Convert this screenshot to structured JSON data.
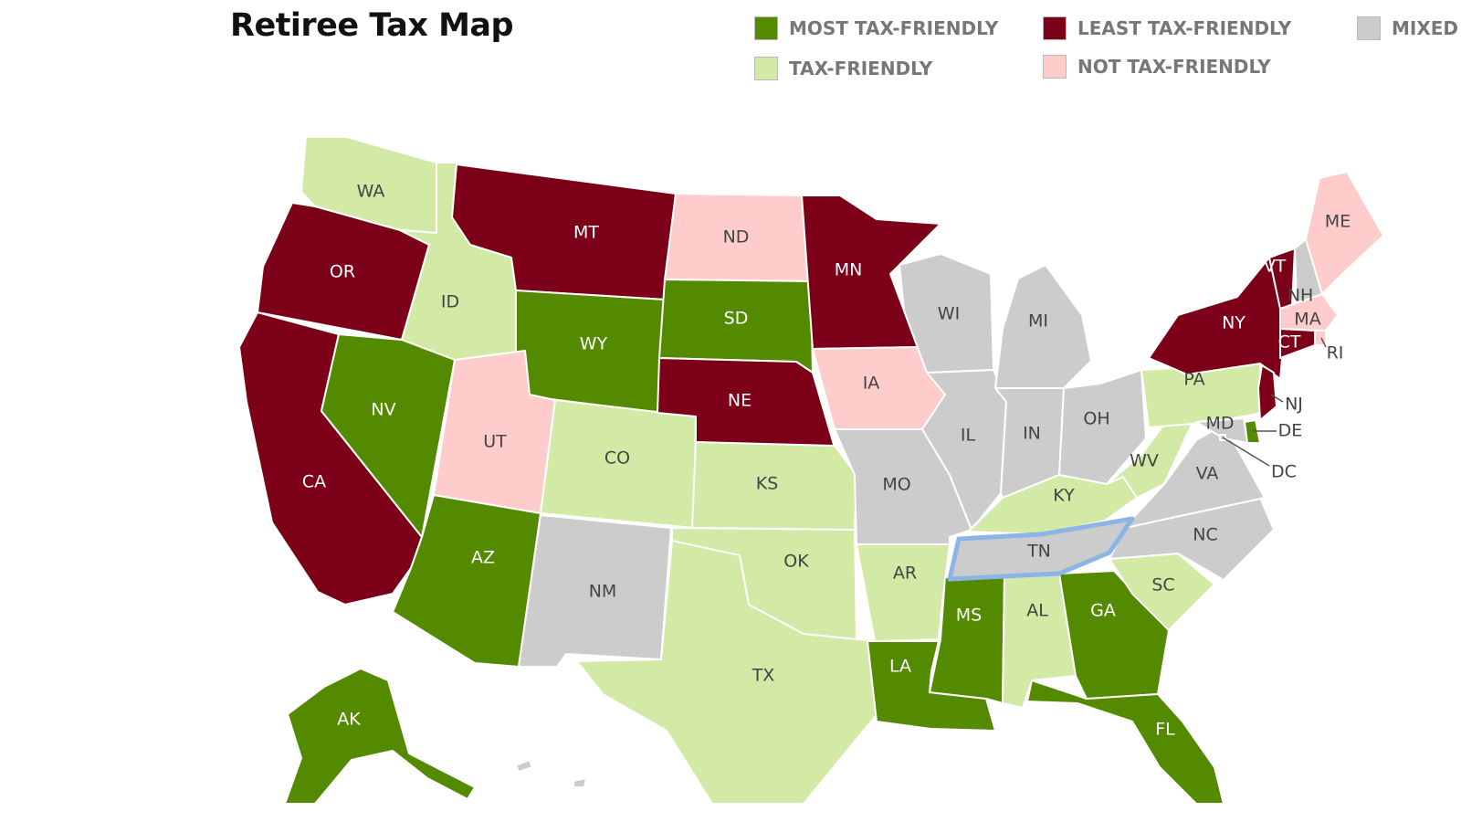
{
  "map": {
    "title": "Retiree Tax Map",
    "legend": [
      {
        "key": "most",
        "label": "MOST TAX-FRIENDLY",
        "color": "#548a00"
      },
      {
        "key": "least",
        "label": "LEAST TAX-FRIENDLY",
        "color": "#7c0018"
      },
      {
        "key": "mixed",
        "label": "MIXED",
        "color": "#cccccc"
      },
      {
        "key": "friendly",
        "label": "TAX-FRIENDLY",
        "color": "#d2eaa6"
      },
      {
        "key": "not",
        "label": "NOT TAX-FRIENDLY",
        "color": "#ffcccc"
      }
    ],
    "label_colors": {
      "on_dark": "#ffffff",
      "on_light": "#444444"
    },
    "selected_state": "TN",
    "states": [
      {
        "code": "WA",
        "category": "friendly"
      },
      {
        "code": "OR",
        "category": "least"
      },
      {
        "code": "CA",
        "category": "least"
      },
      {
        "code": "ID",
        "category": "friendly"
      },
      {
        "code": "NV",
        "category": "most"
      },
      {
        "code": "MT",
        "category": "least"
      },
      {
        "code": "WY",
        "category": "most"
      },
      {
        "code": "UT",
        "category": "not"
      },
      {
        "code": "AZ",
        "category": "most"
      },
      {
        "code": "CO",
        "category": "friendly"
      },
      {
        "code": "NM",
        "category": "mixed"
      },
      {
        "code": "ND",
        "category": "not"
      },
      {
        "code": "SD",
        "category": "most"
      },
      {
        "code": "NE",
        "category": "least"
      },
      {
        "code": "KS",
        "category": "friendly"
      },
      {
        "code": "OK",
        "category": "friendly"
      },
      {
        "code": "TX",
        "category": "friendly"
      },
      {
        "code": "MN",
        "category": "least"
      },
      {
        "code": "IA",
        "category": "not"
      },
      {
        "code": "MO",
        "category": "mixed"
      },
      {
        "code": "AR",
        "category": "friendly"
      },
      {
        "code": "LA",
        "category": "most"
      },
      {
        "code": "WI",
        "category": "mixed"
      },
      {
        "code": "IL",
        "category": "mixed"
      },
      {
        "code": "MI",
        "category": "mixed"
      },
      {
        "code": "IN",
        "category": "mixed"
      },
      {
        "code": "OH",
        "category": "mixed"
      },
      {
        "code": "KY",
        "category": "friendly"
      },
      {
        "code": "TN",
        "category": "mixed"
      },
      {
        "code": "MS",
        "category": "most"
      },
      {
        "code": "AL",
        "category": "friendly"
      },
      {
        "code": "GA",
        "category": "most"
      },
      {
        "code": "FL",
        "category": "most"
      },
      {
        "code": "SC",
        "category": "friendly"
      },
      {
        "code": "NC",
        "category": "mixed"
      },
      {
        "code": "VA",
        "category": "mixed"
      },
      {
        "code": "WV",
        "category": "friendly"
      },
      {
        "code": "PA",
        "category": "friendly"
      },
      {
        "code": "NY",
        "category": "least"
      },
      {
        "code": "VT",
        "category": "least"
      },
      {
        "code": "NH",
        "category": "mixed"
      },
      {
        "code": "ME",
        "category": "not"
      },
      {
        "code": "MA",
        "category": "not"
      },
      {
        "code": "RI",
        "category": "not"
      },
      {
        "code": "CT",
        "category": "least"
      },
      {
        "code": "NJ",
        "category": "least"
      },
      {
        "code": "DE",
        "category": "most"
      },
      {
        "code": "MD",
        "category": "mixed"
      },
      {
        "code": "DC",
        "category": "mixed"
      },
      {
        "code": "AK",
        "category": "most"
      },
      {
        "code": "HI",
        "category": "mixed"
      }
    ]
  }
}
